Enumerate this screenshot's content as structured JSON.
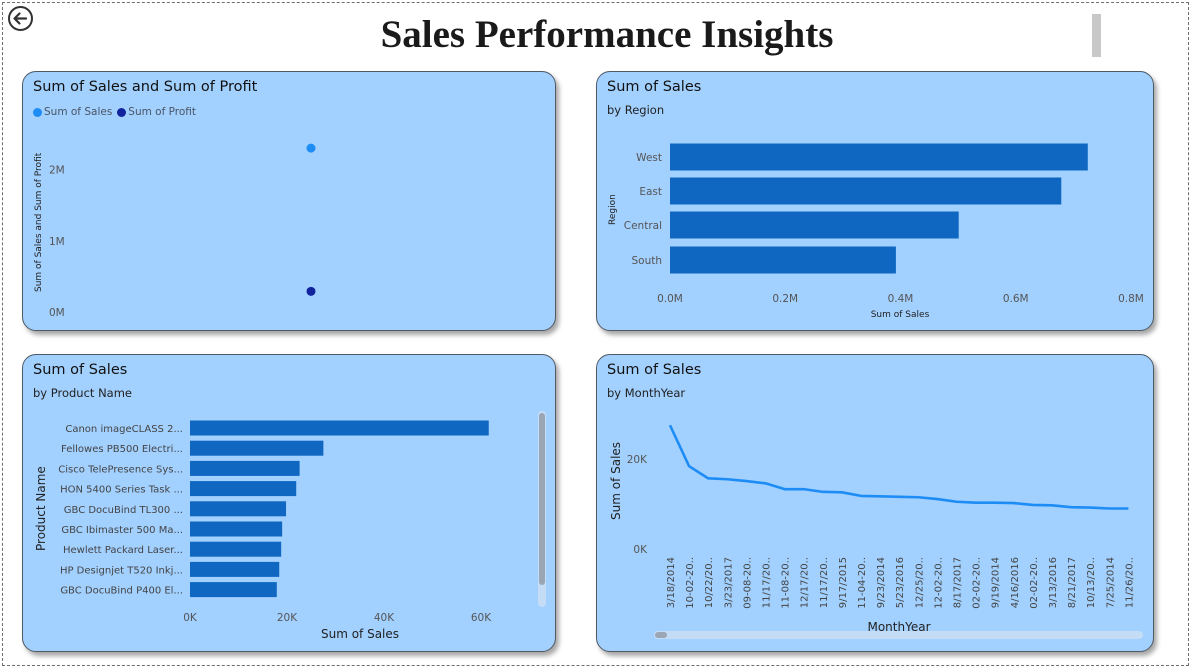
{
  "page": {
    "title": "Sales Performance Insights",
    "back_icon": "back-arrow-icon"
  },
  "colors": {
    "card_bg": "#a2d0ff",
    "bar": "#0f67c2",
    "sales_dot": "#1e8cf5",
    "profit_dot": "#12239e",
    "line": "#1e8cf5"
  },
  "cards": {
    "scatter": {
      "title": "Sum of Sales and Sum of Profit"
    },
    "region": {
      "title": "Sum of Sales",
      "subtitle": "by Region"
    },
    "product": {
      "title": "Sum of Sales",
      "subtitle": "by Product Name"
    },
    "month": {
      "title": "Sum of Sales",
      "subtitle": "by MonthYear"
    }
  },
  "chart_data": [
    {
      "type": "scatter",
      "title": "Sum of Sales and Sum of Profit",
      "legend": [
        "Sum of Sales",
        "Sum of Profit"
      ],
      "legend_position": "top-left",
      "ylabel": "Sum of Sales and Sum of Profit",
      "y_ticks": [
        "0M",
        "1M",
        "2M"
      ],
      "ylim": [
        0,
        2500000
      ],
      "series": [
        {
          "name": "Sum of Sales",
          "values": [
            2300000
          ]
        },
        {
          "name": "Sum of Profit",
          "values": [
            290000
          ]
        }
      ]
    },
    {
      "type": "bar",
      "orientation": "horizontal",
      "title": "Sum of Sales",
      "subtitle": "by Region",
      "categories": [
        "West",
        "East",
        "Central",
        "South"
      ],
      "values": [
        725000,
        679000,
        501000,
        392000
      ],
      "xlabel": "Sum of Sales",
      "ylabel": "Region",
      "x_ticks": [
        "0.0M",
        "0.2M",
        "0.4M",
        "0.6M",
        "0.8M"
      ],
      "xlim": [
        0,
        800000
      ]
    },
    {
      "type": "bar",
      "orientation": "horizontal",
      "title": "Sum of Sales",
      "subtitle": "by Product Name",
      "categories": [
        "Canon imageCLASS 2...",
        "Fellowes PB500 Electri...",
        "Cisco TelePresence Sys...",
        "HON 5400 Series Task ...",
        "GBC DocuBind TL300 ...",
        "GBC Ibimaster 500 Ma...",
        "Hewlett Packard Laser...",
        "HP Designjet T520 Inkj...",
        "GBC DocuBind P400 El..."
      ],
      "values": [
        61600,
        27500,
        22600,
        21900,
        19800,
        19000,
        18800,
        18400,
        17900
      ],
      "xlabel": "Sum of Sales",
      "ylabel": "Product Name",
      "x_ticks": [
        "0K",
        "20K",
        "40K",
        "60K"
      ],
      "xlim": [
        0,
        65000
      ]
    },
    {
      "type": "line",
      "title": "Sum of Sales",
      "subtitle": "by MonthYear",
      "x": [
        "3/18/2014",
        "10-02-20..",
        "10/22/20..",
        "3/23/2017",
        "09-08-20..",
        "11/17/20..",
        "11-08-20..",
        "12/17/20..",
        "11/17/20..",
        "9/17/2015",
        "11-04-20..",
        "9/23/2014",
        "5/23/2016",
        "12/25/20..",
        "12-02-20..",
        "8/17/2017",
        "02-02-20..",
        "9/19/2014",
        "4/16/2016",
        "02-02-20..",
        "3/13/2016",
        "8/21/2017",
        "10/13/20..",
        "7/25/2014",
        "11/26/20.."
      ],
      "values": [
        27500,
        18400,
        15700,
        15500,
        15100,
        14600,
        13300,
        13300,
        12700,
        12600,
        11800,
        11700,
        11600,
        11500,
        11100,
        10500,
        10300,
        10300,
        10200,
        9800,
        9700,
        9300,
        9200,
        9000,
        9000
      ],
      "xlabel": "MonthYear",
      "ylabel": "Sum of Sales",
      "y_ticks": [
        "0K",
        "20K"
      ],
      "ylim": [
        0,
        30000
      ]
    }
  ]
}
